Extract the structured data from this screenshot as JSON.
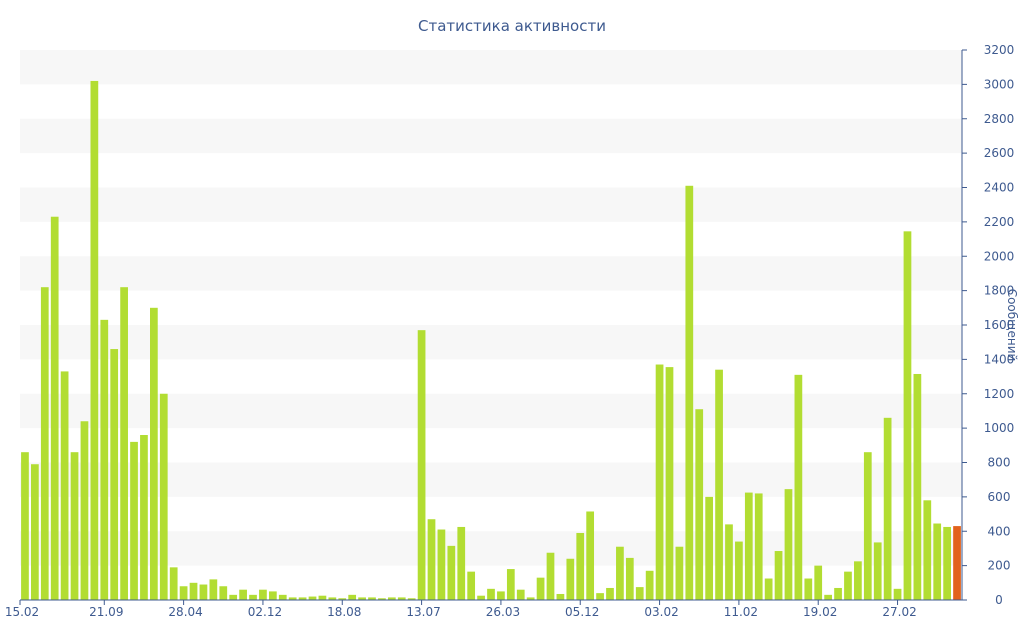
{
  "chart_data": {
    "type": "bar",
    "title": "Статистика активности",
    "xlabel": "",
    "ylabel": "Сообщений",
    "ylim": [
      0,
      3200
    ],
    "y_ticks": [
      0,
      200,
      400,
      600,
      800,
      1000,
      1200,
      1400,
      1600,
      1800,
      2000,
      2200,
      2400,
      2600,
      2800,
      3000,
      3200
    ],
    "y_axis_position": "right",
    "grid": "alternating horizontal bands",
    "x_tick_labels": [
      {
        "index": 0,
        "label": "15.02"
      },
      {
        "index": 8,
        "label": "21.09"
      },
      {
        "index": 16,
        "label": "28.04"
      },
      {
        "index": 24,
        "label": "02.12"
      },
      {
        "index": 32,
        "label": "18.08"
      },
      {
        "index": 40,
        "label": "13.07"
      },
      {
        "index": 48,
        "label": "26.03"
      },
      {
        "index": 56,
        "label": "05.12"
      },
      {
        "index": 64,
        "label": "03.02"
      },
      {
        "index": 72,
        "label": "11.02"
      },
      {
        "index": 80,
        "label": "19.02"
      },
      {
        "index": 88,
        "label": "27.02"
      }
    ],
    "values": [
      860,
      790,
      1820,
      2230,
      1330,
      860,
      1040,
      3020,
      1630,
      1460,
      1820,
      920,
      960,
      1700,
      1200,
      190,
      80,
      100,
      90,
      120,
      80,
      30,
      60,
      30,
      60,
      50,
      30,
      15,
      15,
      20,
      25,
      15,
      10,
      30,
      15,
      15,
      10,
      15,
      15,
      10,
      1570,
      470,
      410,
      315,
      425,
      165,
      25,
      65,
      50,
      180,
      60,
      15,
      130,
      275,
      35,
      240,
      390,
      515,
      40,
      70,
      310,
      245,
      75,
      170,
      1370,
      1355,
      310,
      2410,
      1110,
      600,
      1340,
      440,
      340,
      625,
      620,
      125,
      285,
      645,
      1310,
      125,
      200,
      30,
      70,
      165,
      225,
      860,
      335,
      1060,
      65,
      2145,
      1315,
      580,
      445,
      425,
      430
    ],
    "highlight_last": true,
    "colors": {
      "bar": "#b2dd32",
      "bar_last": "#e2621c",
      "band": "#f7f7f7",
      "axis": "#3e5a8f"
    }
  }
}
